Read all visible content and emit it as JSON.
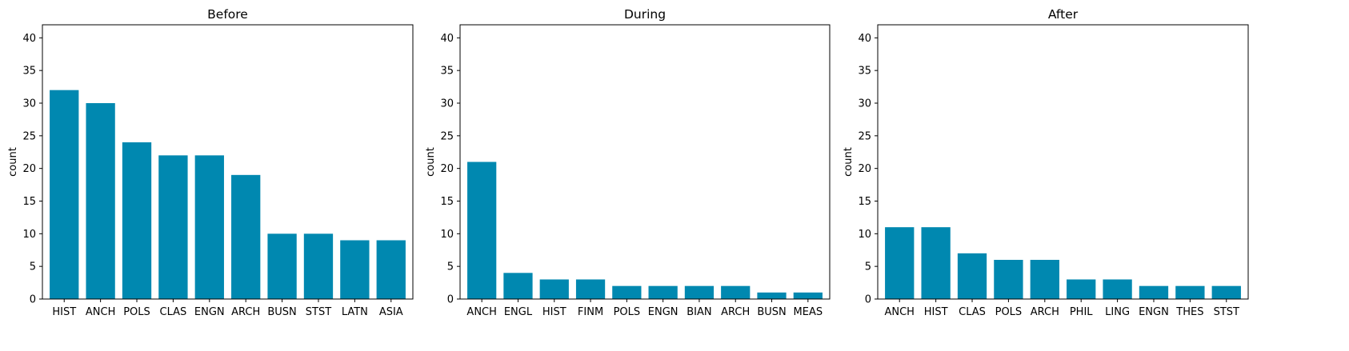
{
  "chart_data": [
    {
      "type": "bar",
      "title": "Before",
      "xlabel": "",
      "ylabel": "count",
      "ylim": [
        0,
        42
      ],
      "yticks": [
        0,
        5,
        10,
        15,
        20,
        25,
        30,
        35,
        40
      ],
      "grid": false,
      "color": "#0088b0",
      "categories": [
        "HIST",
        "ANCH",
        "POLS",
        "CLAS",
        "ENGN",
        "ARCH",
        "BUSN",
        "STST",
        "LATN",
        "ASIA"
      ],
      "values": [
        32,
        30,
        24,
        22,
        22,
        19,
        10,
        10,
        9,
        9
      ]
    },
    {
      "type": "bar",
      "title": "During",
      "xlabel": "",
      "ylabel": "count",
      "ylim": [
        0,
        42
      ],
      "yticks": [
        0,
        5,
        10,
        15,
        20,
        25,
        30,
        35,
        40
      ],
      "grid": false,
      "color": "#0088b0",
      "categories": [
        "ANCH",
        "ENGL",
        "HIST",
        "FINM",
        "POLS",
        "ENGN",
        "BIAN",
        "ARCH",
        "BUSN",
        "MEAS"
      ],
      "values": [
        21,
        4,
        3,
        3,
        2,
        2,
        2,
        2,
        1,
        1
      ]
    },
    {
      "type": "bar",
      "title": "After",
      "xlabel": "",
      "ylabel": "count",
      "ylim": [
        0,
        42
      ],
      "yticks": [
        0,
        5,
        10,
        15,
        20,
        25,
        30,
        35,
        40
      ],
      "grid": false,
      "color": "#0088b0",
      "categories": [
        "ANCH",
        "HIST",
        "CLAS",
        "POLS",
        "ARCH",
        "PHIL",
        "LING",
        "ENGN",
        "THES",
        "STST"
      ],
      "values": [
        11,
        11,
        7,
        6,
        6,
        3,
        3,
        2,
        2,
        2
      ]
    }
  ]
}
